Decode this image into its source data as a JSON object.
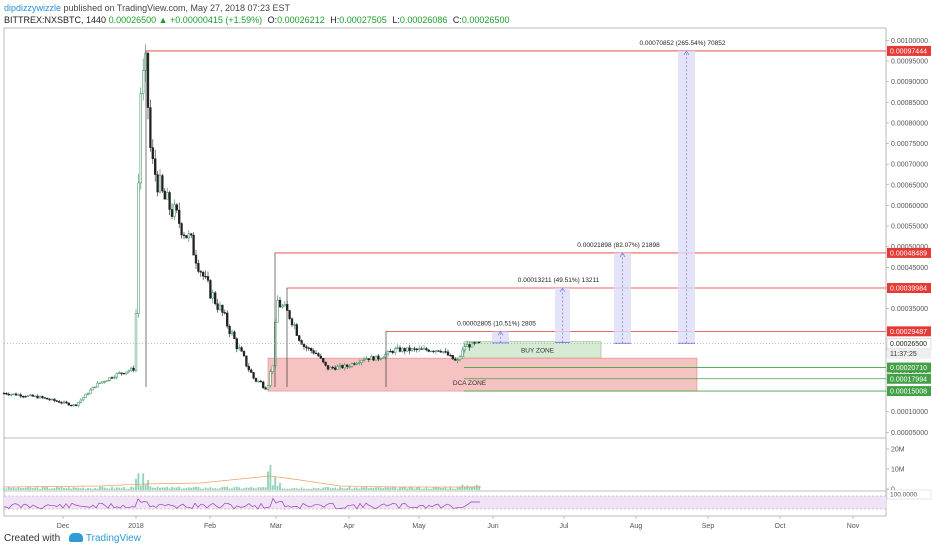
{
  "header": {
    "author": "dipdizzywizzle",
    "published": "published on TradingView.com, May 27, 2018 07:23 EST",
    "symbol": "BITTREX:NXSBTC, 1440",
    "last": "0.00026500",
    "change": "▲ +0.00000415 (+1.59%)",
    "o_label": "O:",
    "o": "0.00026212",
    "h_label": "H:",
    "h": "0.00027505",
    "l_label": "L:",
    "l": "0.00026086",
    "c_label": "C:",
    "c": "0.00026500"
  },
  "footer": {
    "created_with": "Created with",
    "brand": "TradingView"
  },
  "chart_data": {
    "type": "candlestick",
    "x_ticks": [
      "Dec",
      "2018",
      "Feb",
      "Mar",
      "Apr",
      "May",
      "Jun",
      "Jul",
      "Aug",
      "Sep",
      "Oct",
      "Nov"
    ],
    "y_ticks": [
      "0.00100000",
      "0.00095000",
      "0.00090000",
      "0.00085000",
      "0.00080000",
      "0.00075000",
      "0.00070000",
      "0.00065000",
      "0.00060000",
      "0.00055000",
      "0.00050000",
      "0.00045000",
      "0.00040000",
      "0.00035000",
      "0.00030000",
      "0.00025000",
      "0.00020000",
      "0.00015000",
      "0.00010000",
      "0.00005000"
    ],
    "ylim": [
      3.88e-05,
      0.00103
    ],
    "last_price": "0.00026500",
    "countdown": "11:37:25",
    "levels": [
      {
        "value": 0.00097444,
        "label": "0.00097444",
        "kind": "resistance"
      },
      {
        "value": 0.00048489,
        "label": "0.00048489",
        "kind": "resistance"
      },
      {
        "value": 0.00039984,
        "label": "0.00039984",
        "kind": "resistance"
      },
      {
        "value": 0.00029487,
        "label": "0.00029487",
        "kind": "resistance"
      },
      {
        "value": 0.0002071,
        "label": "0.00020710",
        "kind": "support"
      },
      {
        "value": 0.00017994,
        "label": "0.00017994",
        "kind": "support"
      },
      {
        "value": 0.00015008,
        "label": "0.00015008",
        "kind": "support"
      }
    ],
    "zones": [
      {
        "label": "BUY ZONE",
        "from": 0.00023,
        "to": 0.00027
      },
      {
        "label": "DCA ZONE",
        "from": 0.00015008,
        "to": 0.00023
      }
    ],
    "targets": [
      {
        "label": "0.00002805 (10.51%) 2805",
        "from": 0.00026682,
        "to": 0.00029487
      },
      {
        "label": "0.00013211 (49.51%) 13211",
        "from": 0.00026773,
        "to": 0.00039984
      },
      {
        "label": "0.00021898 (82.07%) 21898",
        "from": 0.00026591,
        "to": 0.00048489
      },
      {
        "label": "0.00070852 (265.54%) 70852",
        "from": 0.00026592,
        "to": 0.00097444
      }
    ],
    "volume_ticks": [
      "20M",
      "10M",
      "0"
    ],
    "rsi_label": "100.0000",
    "colors": {
      "up": "#2e8b57",
      "down": "#222222",
      "level": "#e53935",
      "support": "#43a047",
      "dca": "#f4b8b8",
      "buy": "#cfe6cc",
      "target": "#dcdcf8",
      "rsi": "#9b3fb5"
    }
  }
}
